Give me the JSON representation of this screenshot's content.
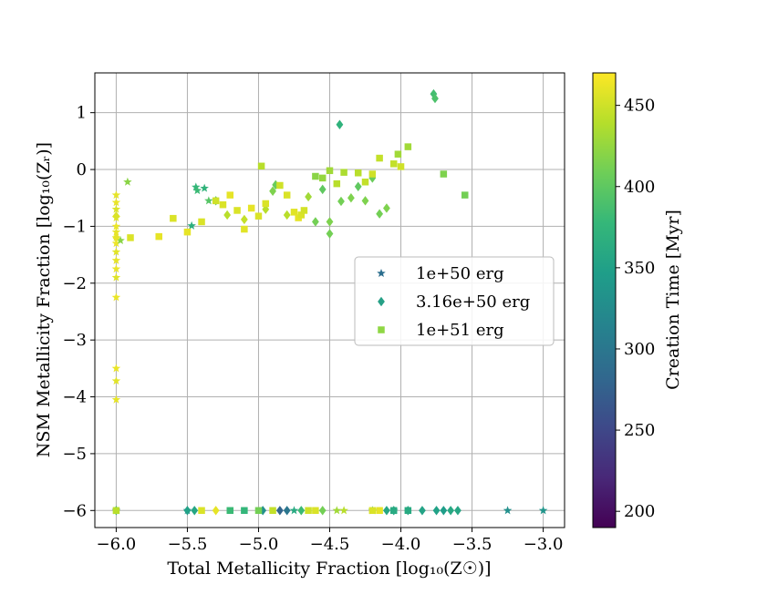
{
  "chart_data": {
    "type": "scatter",
    "xlabel": "Total Metallicity Fraction [log₁₀(Z☉)]",
    "ylabel": "NSM Metallicity Fraction [log₁₀(Zᵣ)]",
    "xlim": [
      -6.15,
      -2.85
    ],
    "ylim": [
      -6.3,
      1.7
    ],
    "xticks": [
      -6.0,
      -5.5,
      -5.0,
      -4.5,
      -4.0,
      -3.5,
      -3.0
    ],
    "xtick_labels": [
      "−6.0",
      "−5.5",
      "−5.0",
      "−4.5",
      "−4.0",
      "−3.5",
      "−3.0"
    ],
    "yticks": [
      1,
      0,
      -1,
      -2,
      -3,
      -4,
      -5,
      -6
    ],
    "ytick_labels": [
      "1",
      "0",
      "−1",
      "−2",
      "−3",
      "−4",
      "−5",
      "−6"
    ],
    "grid": true,
    "legend_position": "center-right",
    "colorbar": {
      "label": "Creation Time [Myr]",
      "range": [
        190,
        470
      ],
      "ticks": [
        200,
        250,
        300,
        350,
        400,
        450
      ],
      "tick_labels": [
        "200",
        "250",
        "300",
        "350",
        "400",
        "450"
      ],
      "colormap": [
        "#440154",
        "#482878",
        "#3e4989",
        "#31688e",
        "#26828e",
        "#1f9e89",
        "#35b779",
        "#6ece58",
        "#b5de2b",
        "#fde725"
      ]
    },
    "series": [
      {
        "name": "1e+50 erg",
        "marker": "star",
        "legend_color": "#2c6e8e",
        "points": [
          [
            -6.0,
            -0.45,
            460
          ],
          [
            -6.0,
            -0.58,
            462
          ],
          [
            -6.0,
            -0.7,
            455
          ],
          [
            -6.0,
            -0.85,
            458
          ],
          [
            -6.0,
            -1.0,
            462
          ],
          [
            -6.0,
            -1.1,
            460
          ],
          [
            -6.0,
            -1.2,
            455
          ],
          [
            -6.0,
            -1.3,
            463
          ],
          [
            -6.0,
            -1.45,
            458
          ],
          [
            -6.0,
            -1.6,
            460
          ],
          [
            -6.0,
            -1.75,
            462
          ],
          [
            -6.0,
            -1.9,
            457
          ],
          [
            -6.0,
            -2.25,
            462
          ],
          [
            -6.0,
            -3.5,
            462
          ],
          [
            -6.0,
            -3.72,
            458
          ],
          [
            -6.0,
            -4.05,
            460
          ],
          [
            -5.97,
            -1.25,
            420
          ],
          [
            -5.92,
            -0.22,
            420
          ],
          [
            -5.47,
            -0.99,
            365
          ],
          [
            -5.44,
            -0.31,
            375
          ],
          [
            -5.43,
            -0.37,
            380
          ],
          [
            -5.38,
            -0.33,
            372
          ],
          [
            -5.35,
            -0.55,
            395
          ],
          [
            -6.0,
            -6.0,
            300
          ],
          [
            -5.5,
            -6.0,
            320
          ],
          [
            -4.75,
            -6.0,
            360
          ],
          [
            -4.45,
            -6.0,
            430
          ],
          [
            -4.4,
            -6.0,
            440
          ],
          [
            -4.2,
            -6.0,
            370
          ],
          [
            -4.05,
            -6.0,
            350
          ],
          [
            -3.25,
            -6.0,
            330
          ],
          [
            -3.0,
            -6.0,
            335
          ]
        ]
      },
      {
        "name": "3.16e+50 erg",
        "marker": "diamond",
        "legend_color": "#26a086",
        "points": [
          [
            -6.0,
            -0.82,
            455
          ],
          [
            -6.0,
            -1.2,
            460
          ],
          [
            -5.3,
            -0.55,
            400
          ],
          [
            -5.22,
            -0.8,
            440
          ],
          [
            -5.1,
            -0.88,
            445
          ],
          [
            -4.95,
            -0.7,
            440
          ],
          [
            -4.9,
            -0.38,
            415
          ],
          [
            -4.88,
            -0.27,
            405
          ],
          [
            -4.8,
            -0.8,
            440
          ],
          [
            -4.65,
            -0.48,
            430
          ],
          [
            -4.6,
            -0.92,
            410
          ],
          [
            -4.55,
            -0.35,
            400
          ],
          [
            -4.5,
            -1.13,
            410
          ],
          [
            -4.5,
            -0.92,
            415
          ],
          [
            -4.43,
            0.79,
            370
          ],
          [
            -4.42,
            -0.56,
            410
          ],
          [
            -4.35,
            -0.5,
            415
          ],
          [
            -4.3,
            -0.3,
            400
          ],
          [
            -4.25,
            -0.55,
            415
          ],
          [
            -4.2,
            -0.15,
            405
          ],
          [
            -4.15,
            -0.78,
            410
          ],
          [
            -4.1,
            -0.68,
            415
          ],
          [
            -3.77,
            1.33,
            385
          ],
          [
            -3.76,
            1.25,
            390
          ],
          [
            -6.0,
            -6.0,
            380
          ],
          [
            -5.5,
            -6.0,
            350
          ],
          [
            -5.45,
            -6.0,
            355
          ],
          [
            -5.3,
            -6.0,
            460
          ],
          [
            -4.97,
            -6.0,
            330
          ],
          [
            -4.85,
            -6.0,
            280
          ],
          [
            -4.8,
            -6.0,
            300
          ],
          [
            -4.7,
            -6.0,
            380
          ],
          [
            -4.55,
            -6.0,
            410
          ],
          [
            -4.1,
            -6.0,
            355
          ],
          [
            -4.05,
            -6.0,
            360
          ],
          [
            -3.95,
            -6.0,
            355
          ],
          [
            -3.85,
            -6.0,
            352
          ],
          [
            -3.75,
            -6.0,
            350
          ],
          [
            -3.7,
            -6.0,
            345
          ],
          [
            -3.65,
            -6.0,
            358
          ],
          [
            -3.6,
            -6.0,
            355
          ]
        ]
      },
      {
        "name": "1e+51 erg",
        "marker": "square",
        "legend_color": "#8fd744",
        "points": [
          [
            -5.9,
            -1.2,
            455
          ],
          [
            -5.7,
            -1.18,
            460
          ],
          [
            -5.6,
            -0.86,
            455
          ],
          [
            -5.5,
            -1.1,
            460
          ],
          [
            -5.4,
            -0.92,
            455
          ],
          [
            -5.3,
            -0.55,
            450
          ],
          [
            -5.25,
            -0.62,
            455
          ],
          [
            -5.2,
            -0.45,
            460
          ],
          [
            -5.15,
            -0.72,
            455
          ],
          [
            -5.1,
            -1.05,
            458
          ],
          [
            -5.05,
            -0.68,
            460
          ],
          [
            -5.0,
            -0.82,
            455
          ],
          [
            -4.98,
            0.06,
            440
          ],
          [
            -4.95,
            -0.6,
            455
          ],
          [
            -4.85,
            -0.28,
            450
          ],
          [
            -4.8,
            -0.45,
            455
          ],
          [
            -4.75,
            -0.75,
            458
          ],
          [
            -4.72,
            -0.85,
            460
          ],
          [
            -4.7,
            -0.8,
            455
          ],
          [
            -4.68,
            -0.72,
            452
          ],
          [
            -4.6,
            -0.12,
            420
          ],
          [
            -4.55,
            -0.15,
            425
          ],
          [
            -4.5,
            -0.02,
            430
          ],
          [
            -4.45,
            -0.25,
            440
          ],
          [
            -4.4,
            -0.05,
            435
          ],
          [
            -4.3,
            -0.06,
            440
          ],
          [
            -4.25,
            -0.22,
            445
          ],
          [
            -4.2,
            -0.08,
            450
          ],
          [
            -4.15,
            0.2,
            445
          ],
          [
            -4.05,
            0.1,
            445
          ],
          [
            -4.02,
            0.27,
            430
          ],
          [
            -4.0,
            0.05,
            450
          ],
          [
            -3.95,
            0.4,
            430
          ],
          [
            -3.7,
            -0.08,
            415
          ],
          [
            -3.55,
            -0.45,
            410
          ],
          [
            -6.0,
            -6.0,
            440
          ],
          [
            -5.4,
            -6.0,
            455
          ],
          [
            -5.2,
            -6.0,
            380
          ],
          [
            -5.1,
            -6.0,
            375
          ],
          [
            -5.0,
            -6.0,
            410
          ],
          [
            -4.9,
            -6.0,
            445
          ],
          [
            -4.65,
            -6.0,
            450
          ],
          [
            -4.6,
            -6.0,
            455
          ],
          [
            -4.2,
            -6.0,
            455
          ],
          [
            -4.15,
            -6.0,
            460
          ],
          [
            -4.05,
            -6.0,
            360
          ],
          [
            -3.95,
            -6.0,
            360
          ]
        ]
      }
    ]
  }
}
